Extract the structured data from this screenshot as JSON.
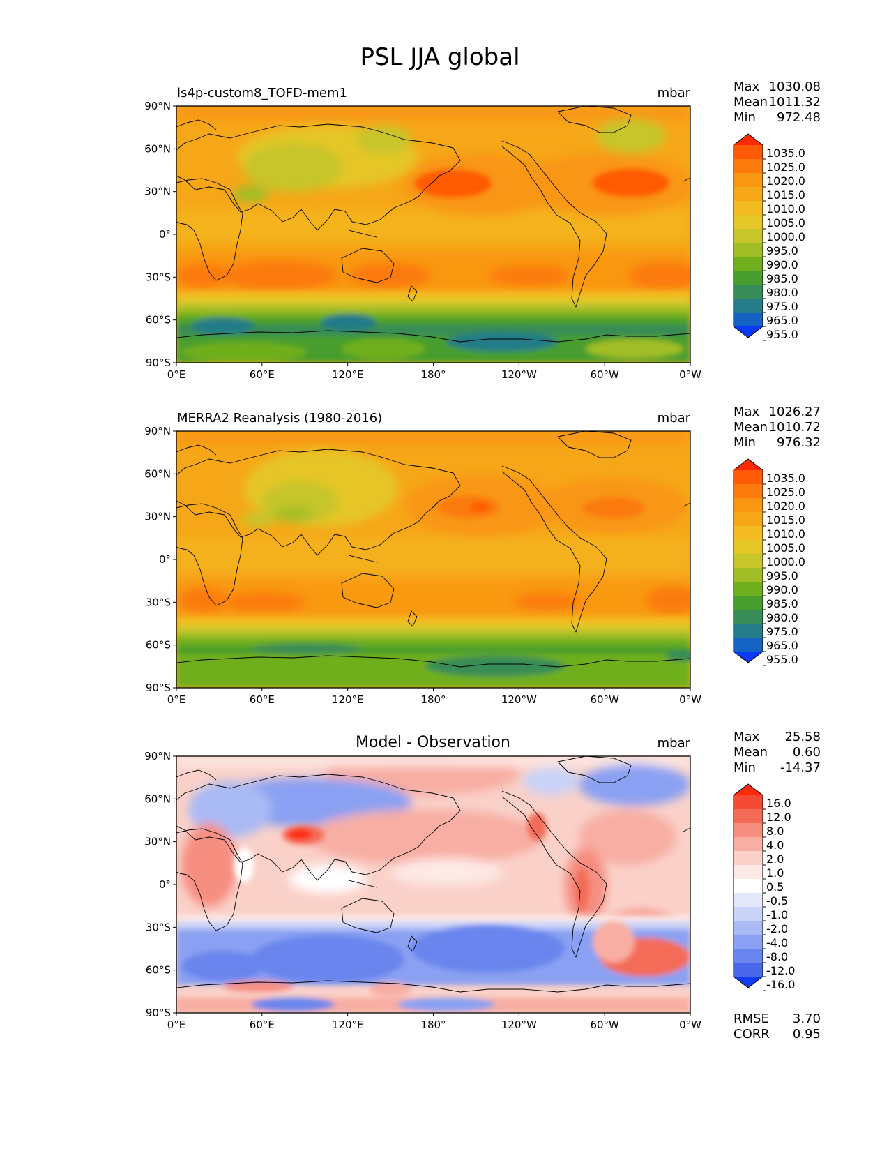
{
  "figure": {
    "title": "PSL JJA global"
  },
  "axes": {
    "lat_labels": [
      "90°N",
      "60°N",
      "30°N",
      "0°",
      "30°S",
      "60°S",
      "90°S"
    ],
    "lon_labels": [
      "0°E",
      "60°E",
      "120°E",
      "180°",
      "120°W",
      "60°W",
      "0°W"
    ]
  },
  "panels": [
    {
      "title_left": "ls4p-custom8_TOFD-mem1",
      "title_center": "",
      "units": "mbar",
      "stats": [
        {
          "label": "Max",
          "value": "1030.08"
        },
        {
          "label": "Mean",
          "value": "1011.32"
        },
        {
          "label": "Min",
          "value": "972.48"
        }
      ]
    },
    {
      "title_left": "MERRA2 Reanalysis (1980-2016)",
      "title_center": "",
      "units": "mbar",
      "stats": [
        {
          "label": "Max",
          "value": "1026.27"
        },
        {
          "label": "Mean",
          "value": "1010.72"
        },
        {
          "label": "Min",
          "value": "976.32"
        }
      ]
    },
    {
      "title_left": "",
      "title_center": "Model - Observation",
      "units": "mbar",
      "stats": [
        {
          "label": "Max",
          "value": "25.58"
        },
        {
          "label": "Mean",
          "value": "0.60"
        },
        {
          "label": "Min",
          "value": "-14.37"
        }
      ],
      "metrics": [
        {
          "label": "RMSE",
          "value": "3.70"
        },
        {
          "label": "CORR",
          "value": "0.95"
        }
      ]
    }
  ],
  "colorbars": {
    "field": {
      "labels": [
        "1035.0",
        "1025.0",
        "1020.0",
        "1015.0",
        "1010.0",
        "1005.0",
        "1000.0",
        "995.0",
        "990.0",
        "985.0",
        "980.0",
        "975.0",
        "965.0",
        "955.0"
      ],
      "colors": [
        "#ff2a00",
        "#ff5a05",
        "#fb7a0c",
        "#f99612",
        "#f6a718",
        "#f3bb21",
        "#e5c627",
        "#c6c52a",
        "#a1bd25",
        "#6faf1d",
        "#479e2f",
        "#388c57",
        "#237c88",
        "#1463c4",
        "#0a3af8"
      ]
    },
    "diff": {
      "labels": [
        "16.0",
        "12.0",
        "8.0",
        "4.0",
        "2.0",
        "1.0",
        "0.5",
        "-0.5",
        "-1.0",
        "-2.0",
        "-4.0",
        "-8.0",
        "-12.0",
        "-16.0"
      ],
      "colors": [
        "#ff2a0b",
        "#f64a35",
        "#f46c58",
        "#f68e80",
        "#f8aea3",
        "#fad1c9",
        "#fde9e5",
        "#ffffff",
        "#e3e8fb",
        "#c9d3f8",
        "#a9baf5",
        "#8aa0f2",
        "#6a86ee",
        "#4a68ea",
        "#0f3cf7"
      ]
    }
  },
  "chart_data": [
    {
      "type": "heatmap",
      "title": "ls4p-custom8_TOFD-mem1",
      "variable": "PSL",
      "units": "mbar",
      "x": [
        "0°E",
        "60°E",
        "120°E",
        "180°",
        "120°W",
        "60°W",
        "0°W"
      ],
      "y": [
        "90°N",
        "60°N",
        "30°N",
        "0°",
        "30°S",
        "60°S",
        "90°S"
      ],
      "xlim": [
        0,
        360
      ],
      "ylim": [
        -90,
        90
      ],
      "levels": [
        955,
        965,
        975,
        980,
        985,
        990,
        995,
        1000,
        1005,
        1010,
        1015,
        1020,
        1025,
        1035
      ],
      "max": 1030.08,
      "mean": 1011.32,
      "min": 972.48
    },
    {
      "type": "heatmap",
      "title": "MERRA2 Reanalysis (1980-2016)",
      "variable": "PSL",
      "units": "mbar",
      "x": [
        "0°E",
        "60°E",
        "120°E",
        "180°",
        "120°W",
        "60°W",
        "0°W"
      ],
      "y": [
        "90°N",
        "60°N",
        "30°N",
        "0°",
        "30°S",
        "60°S",
        "90°S"
      ],
      "xlim": [
        0,
        360
      ],
      "ylim": [
        -90,
        90
      ],
      "levels": [
        955,
        965,
        975,
        980,
        985,
        990,
        995,
        1000,
        1005,
        1010,
        1015,
        1020,
        1025,
        1035
      ],
      "max": 1026.27,
      "mean": 1010.72,
      "min": 976.32
    },
    {
      "type": "heatmap",
      "title": "Model - Observation",
      "variable": "PSL difference",
      "units": "mbar",
      "x": [
        "0°E",
        "60°E",
        "120°E",
        "180°",
        "120°W",
        "60°W",
        "0°W"
      ],
      "y": [
        "90°N",
        "60°N",
        "30°N",
        "0°",
        "30°S",
        "60°S",
        "90°S"
      ],
      "xlim": [
        0,
        360
      ],
      "ylim": [
        -90,
        90
      ],
      "levels": [
        -16,
        -12,
        -8,
        -4,
        -2,
        -1,
        -0.5,
        0.5,
        1,
        2,
        4,
        8,
        12,
        16
      ],
      "max": 25.58,
      "mean": 0.6,
      "min": -14.37,
      "rmse": 3.7,
      "corr": 0.95
    }
  ]
}
